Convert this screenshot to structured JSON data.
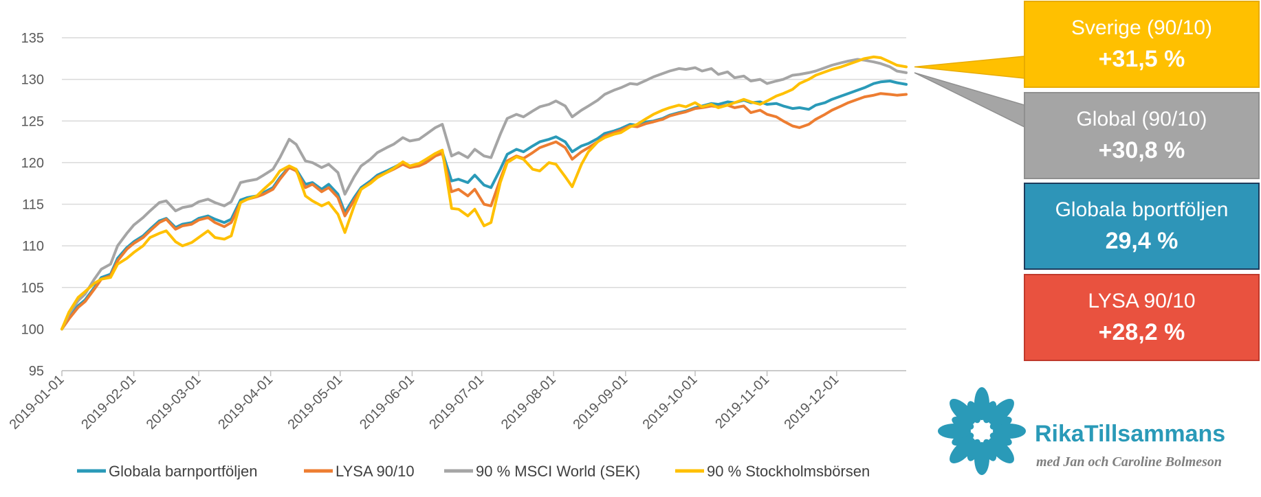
{
  "chart_data": {
    "type": "line",
    "title": "",
    "xlabel": "",
    "ylabel": "",
    "ylim": [
      95,
      135
    ],
    "yticks": [
      95,
      100,
      105,
      110,
      115,
      120,
      125,
      130,
      135
    ],
    "x_tick_labels": [
      "2019-01-01",
      "2019-02-01",
      "2019-03-01",
      "2019-04-01",
      "2019-05-01",
      "2019-06-01",
      "2019-07-01",
      "2019-08-01",
      "2019-09-01",
      "2019-10-01",
      "2019-11-01",
      "2019-12-01"
    ],
    "x_ticks_day": [
      0,
      31,
      59,
      90,
      120,
      151,
      181,
      212,
      243,
      273,
      304,
      334
    ],
    "xlim_day": [
      0,
      364
    ],
    "grid": true,
    "legend_position": "bottom",
    "series": [
      {
        "name": "Globala barnportföljen",
        "color": "#2a9ab8",
        "day": [
          0,
          3,
          7,
          10,
          14,
          17,
          21,
          24,
          28,
          31,
          35,
          38,
          42,
          45,
          49,
          52,
          56,
          59,
          63,
          66,
          70,
          73,
          77,
          80,
          84,
          87,
          91,
          94,
          98,
          101,
          105,
          108,
          112,
          115,
          119,
          122,
          126,
          129,
          133,
          136,
          140,
          143,
          147,
          150,
          154,
          157,
          161,
          164,
          168,
          171,
          175,
          178,
          182,
          185,
          189,
          192,
          196,
          199,
          203,
          206,
          210,
          213,
          217,
          220,
          224,
          227,
          231,
          234,
          238,
          241,
          245,
          248,
          252,
          255,
          259,
          262,
          266,
          269,
          273,
          276,
          280,
          283,
          287,
          290,
          294,
          297,
          301,
          304,
          308,
          311,
          315,
          318,
          322,
          325,
          329,
          332,
          336,
          339,
          343,
          346,
          350,
          353,
          357,
          360,
          364
        ],
        "values": [
          100,
          101.5,
          102.8,
          103.5,
          105.0,
          106.2,
          106.6,
          108.5,
          109.8,
          110.5,
          111.2,
          112.0,
          113.0,
          113.3,
          112.2,
          112.6,
          112.8,
          113.3,
          113.6,
          113.2,
          112.8,
          113.2,
          115.5,
          115.8,
          116.0,
          116.4,
          117.0,
          118.2,
          119.5,
          119.2,
          117.4,
          117.6,
          116.8,
          117.4,
          116.2,
          114.0,
          115.8,
          117.0,
          117.8,
          118.5,
          119.0,
          119.4,
          120.0,
          119.6,
          119.8,
          120.3,
          121.0,
          121.3,
          117.8,
          118.0,
          117.6,
          118.5,
          117.3,
          117.0,
          119.2,
          121.0,
          121.6,
          121.3,
          122.0,
          122.5,
          122.8,
          123.1,
          122.5,
          121.3,
          122.0,
          122.3,
          122.9,
          123.5,
          123.8,
          124.1,
          124.6,
          124.5,
          124.9,
          125.0,
          125.3,
          125.7,
          126.0,
          126.2,
          126.6,
          126.8,
          127.1,
          127.0,
          127.3,
          127.2,
          127.5,
          127.2,
          127.3,
          127.0,
          127.1,
          126.8,
          126.5,
          126.6,
          126.4,
          126.9,
          127.2,
          127.6,
          128.0,
          128.3,
          128.7,
          129.0,
          129.5,
          129.7,
          129.8,
          129.6,
          129.4
        ],
        "final_value": 129.4
      },
      {
        "name": "LYSA 90/10",
        "color": "#ed7d31",
        "day": [
          0,
          3,
          7,
          10,
          14,
          17,
          21,
          24,
          28,
          31,
          35,
          38,
          42,
          45,
          49,
          52,
          56,
          59,
          63,
          66,
          70,
          73,
          77,
          80,
          84,
          87,
          91,
          94,
          98,
          101,
          105,
          108,
          112,
          115,
          119,
          122,
          126,
          129,
          133,
          136,
          140,
          143,
          147,
          150,
          154,
          157,
          161,
          164,
          168,
          171,
          175,
          178,
          182,
          185,
          189,
          192,
          196,
          199,
          203,
          206,
          210,
          213,
          217,
          220,
          224,
          227,
          231,
          234,
          238,
          241,
          245,
          248,
          252,
          255,
          259,
          262,
          266,
          269,
          273,
          276,
          280,
          283,
          287,
          290,
          294,
          297,
          301,
          304,
          308,
          311,
          315,
          318,
          322,
          325,
          329,
          332,
          336,
          339,
          343,
          346,
          350,
          353,
          357,
          360,
          364
        ],
        "values": [
          100,
          101.2,
          102.6,
          103.3,
          104.8,
          106.0,
          106.4,
          108.2,
          109.6,
          110.3,
          111.0,
          111.8,
          112.8,
          113.2,
          112.0,
          112.4,
          112.6,
          113.1,
          113.4,
          112.8,
          112.3,
          112.8,
          115.2,
          115.6,
          115.9,
          116.2,
          116.8,
          118.0,
          119.4,
          119.0,
          117.0,
          117.4,
          116.5,
          117.0,
          115.8,
          113.6,
          115.5,
          116.8,
          117.6,
          118.3,
          118.8,
          119.2,
          119.8,
          119.4,
          119.6,
          120.0,
          120.8,
          121.1,
          116.5,
          116.8,
          116.0,
          116.8,
          115.0,
          114.8,
          118.0,
          120.2,
          120.8,
          120.5,
          121.2,
          121.8,
          122.2,
          122.5,
          121.8,
          120.4,
          121.3,
          121.8,
          122.5,
          123.2,
          123.6,
          123.9,
          124.4,
          124.3,
          124.7,
          124.9,
          125.2,
          125.6,
          125.9,
          126.1,
          126.5,
          126.6,
          126.8,
          126.7,
          126.9,
          126.6,
          126.8,
          126.0,
          126.3,
          125.8,
          125.5,
          125.0,
          124.4,
          124.2,
          124.6,
          125.2,
          125.8,
          126.3,
          126.8,
          127.2,
          127.6,
          127.9,
          128.1,
          128.3,
          128.2,
          128.1,
          128.2
        ],
        "final_value": 128.2
      },
      {
        "name": "90 % MSCI World (SEK)",
        "color": "#a5a5a5",
        "day": [
          0,
          3,
          7,
          10,
          14,
          17,
          21,
          24,
          28,
          31,
          35,
          38,
          42,
          45,
          49,
          52,
          56,
          59,
          63,
          66,
          70,
          73,
          77,
          80,
          84,
          87,
          91,
          94,
          98,
          101,
          105,
          108,
          112,
          115,
          119,
          122,
          126,
          129,
          133,
          136,
          140,
          143,
          147,
          150,
          154,
          157,
          161,
          164,
          168,
          171,
          175,
          178,
          182,
          185,
          189,
          192,
          196,
          199,
          203,
          206,
          210,
          213,
          217,
          220,
          224,
          227,
          231,
          234,
          238,
          241,
          245,
          248,
          252,
          255,
          259,
          262,
          266,
          269,
          273,
          276,
          280,
          283,
          287,
          290,
          294,
          297,
          301,
          304,
          308,
          311,
          315,
          318,
          322,
          325,
          329,
          332,
          336,
          339,
          343,
          346,
          350,
          353,
          357,
          360,
          364
        ],
        "values": [
          100,
          101.8,
          103.4,
          104.2,
          106.0,
          107.2,
          107.8,
          110.0,
          111.5,
          112.5,
          113.4,
          114.2,
          115.2,
          115.4,
          114.2,
          114.6,
          114.8,
          115.3,
          115.6,
          115.2,
          114.8,
          115.3,
          117.6,
          117.8,
          118.0,
          118.5,
          119.2,
          120.6,
          122.8,
          122.2,
          120.2,
          120.0,
          119.4,
          119.8,
          118.8,
          116.2,
          118.3,
          119.6,
          120.4,
          121.2,
          121.8,
          122.2,
          123.0,
          122.6,
          122.8,
          123.4,
          124.2,
          124.6,
          120.8,
          121.2,
          120.6,
          121.6,
          120.8,
          120.6,
          123.4,
          125.3,
          125.8,
          125.5,
          126.2,
          126.7,
          127.0,
          127.4,
          126.8,
          125.5,
          126.3,
          126.8,
          127.5,
          128.2,
          128.7,
          129.0,
          129.5,
          129.4,
          129.9,
          130.3,
          130.7,
          131.0,
          131.3,
          131.2,
          131.4,
          131.0,
          131.3,
          130.6,
          130.9,
          130.2,
          130.4,
          129.8,
          130.0,
          129.5,
          129.8,
          130.0,
          130.5,
          130.6,
          130.8,
          131.0,
          131.4,
          131.7,
          132.0,
          132.2,
          132.4,
          132.3,
          132.1,
          131.9,
          131.5,
          131.0,
          130.8
        ],
        "final_value": 130.8
      },
      {
        "name": "90 % Stockholmsbörsen",
        "color": "#ffc000",
        "day": [
          0,
          3,
          7,
          10,
          14,
          17,
          21,
          24,
          28,
          31,
          35,
          38,
          42,
          45,
          49,
          52,
          56,
          59,
          63,
          66,
          70,
          73,
          77,
          80,
          84,
          87,
          91,
          94,
          98,
          101,
          105,
          108,
          112,
          115,
          119,
          122,
          126,
          129,
          133,
          136,
          140,
          143,
          147,
          150,
          154,
          157,
          161,
          164,
          168,
          171,
          175,
          178,
          182,
          185,
          189,
          192,
          196,
          199,
          203,
          206,
          210,
          213,
          217,
          220,
          224,
          227,
          231,
          234,
          238,
          241,
          245,
          248,
          252,
          255,
          259,
          262,
          266,
          269,
          273,
          276,
          280,
          283,
          287,
          290,
          294,
          297,
          301,
          304,
          308,
          311,
          315,
          318,
          322,
          325,
          329,
          332,
          336,
          339,
          343,
          346,
          350,
          353,
          357,
          360,
          364
        ],
        "values": [
          100,
          102.0,
          103.8,
          104.5,
          105.5,
          106.0,
          106.2,
          107.8,
          108.5,
          109.2,
          110.0,
          111.0,
          111.5,
          111.8,
          110.5,
          110.0,
          110.4,
          111.0,
          111.8,
          111.0,
          110.8,
          111.2,
          115.2,
          115.6,
          116.0,
          116.8,
          117.8,
          119.0,
          119.6,
          119.2,
          116.0,
          115.4,
          114.8,
          115.2,
          113.8,
          111.6,
          114.8,
          116.8,
          117.5,
          118.2,
          118.8,
          119.3,
          120.1,
          119.6,
          119.9,
          120.4,
          121.1,
          121.5,
          114.5,
          114.4,
          113.6,
          114.4,
          112.4,
          112.8,
          117.6,
          120.0,
          120.7,
          120.4,
          119.2,
          119.0,
          120.0,
          119.8,
          118.3,
          117.1,
          119.8,
          121.3,
          122.5,
          123.0,
          123.4,
          123.6,
          124.3,
          124.6,
          125.3,
          125.8,
          126.3,
          126.6,
          126.9,
          126.7,
          127.2,
          126.7,
          127.0,
          126.6,
          126.9,
          127.2,
          127.6,
          127.3,
          127.0,
          127.4,
          128.0,
          128.3,
          128.8,
          129.5,
          130.0,
          130.5,
          130.9,
          131.2,
          131.5,
          131.8,
          132.2,
          132.5,
          132.7,
          132.6,
          132.1,
          131.7,
          131.5
        ],
        "final_value": 131.5
      }
    ]
  },
  "callouts": [
    {
      "title": "Sverige (90/10)",
      "value": "+31,5 %",
      "color": "#ffc000",
      "border": "#e8ab00",
      "pointer_series": 3
    },
    {
      "title": "Global (90/10)",
      "value": "+30,8 %",
      "color": "#a5a5a5",
      "border": "#8f8f8f",
      "pointer_series": 2
    },
    {
      "title": "Globala bportföljen",
      "value": "29,4 %",
      "color": "#2e95b8",
      "border": "#1d3b5c"
    },
    {
      "title": "LYSA 90/10",
      "value": "+28,2 %",
      "color": "#e9523f",
      "border": "#c0392b"
    }
  ],
  "brand": {
    "name": "RikaTillsammans",
    "tagline": "med Jan och Caroline Bolmeson",
    "logo_icon": "flower-icon",
    "logo_color": "#2a9ab8"
  }
}
